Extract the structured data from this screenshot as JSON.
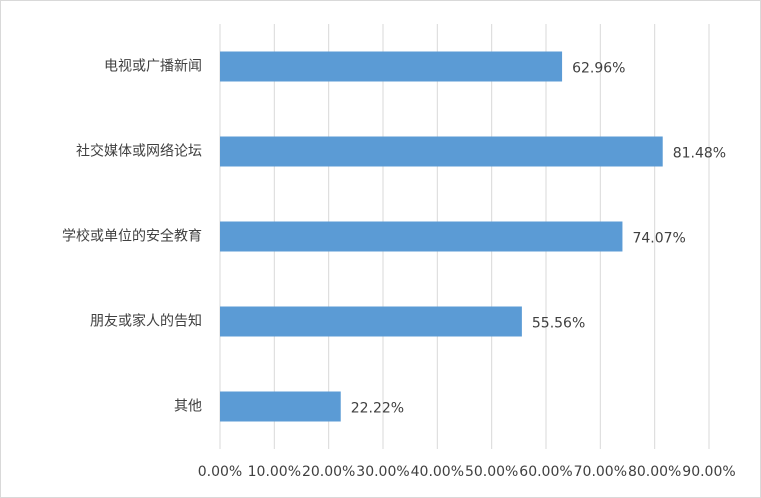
{
  "chart_data": {
    "type": "bar",
    "orientation": "horizontal",
    "categories": [
      "电视或广播新闻",
      "社交媒体或网络论坛",
      "学校或单位的安全教育",
      "朋友或家人的告知",
      "其他"
    ],
    "values": [
      62.96,
      81.48,
      74.07,
      55.56,
      22.22
    ],
    "value_labels": [
      "62.96%",
      "81.48%",
      "74.07%",
      "55.56%",
      "22.22%"
    ],
    "color": "#5b9bd5",
    "xlim": [
      0,
      90
    ],
    "xticks": [
      {
        "value": 0,
        "label": "0.00%"
      },
      {
        "value": 10,
        "label": "10.00%"
      },
      {
        "value": 20,
        "label": "20.00%"
      },
      {
        "value": 30,
        "label": "30.00%"
      },
      {
        "value": 40,
        "label": "40.00%"
      },
      {
        "value": 50,
        "label": "50.00%"
      },
      {
        "value": 60,
        "label": "60.00%"
      },
      {
        "value": 70,
        "label": "70.00%"
      },
      {
        "value": 80,
        "label": "80.00%"
      },
      {
        "value": 90,
        "label": "90.00%"
      }
    ],
    "grid": true
  }
}
